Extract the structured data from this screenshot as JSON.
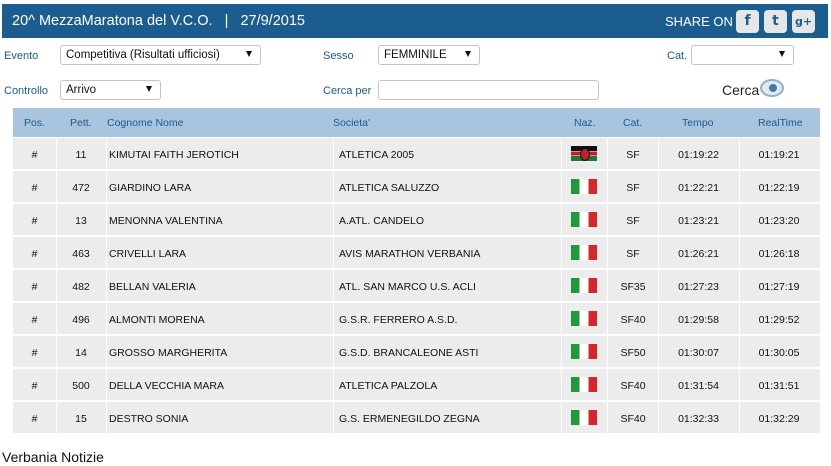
{
  "header": {
    "title": "20^ MezzaMaratona del V.C.O.   |   27/9/2015",
    "share_label": "SHARE ON",
    "social": [
      "f",
      "t",
      "g+"
    ]
  },
  "filters": {
    "evento_label": "Evento",
    "evento_value": "Competitiva (Risultati ufficiosi)",
    "sesso_label": "Sesso",
    "sesso_value": "FEMMINILE",
    "cat_label": "Cat.",
    "cat_value": "",
    "controllo_label": "Controllo",
    "controllo_value": "Arrivo",
    "cerca_per_label": "Cerca per",
    "cerca_per_value": "",
    "cerca_button": "Cerca"
  },
  "table": {
    "headers": {
      "pos": "Pos.",
      "pett": "Pett.",
      "name": "Cognome Nome",
      "club": "Societa'",
      "naz": "Naz.",
      "cat": "Cat.",
      "tempo": "Tempo",
      "realtime": "RealTime"
    },
    "rows": [
      {
        "pos": "#",
        "pett": "11",
        "name": "KIMUTAI FAITH JEROTICH",
        "club": "ATLETICA 2005",
        "flag": "kenya-flag",
        "cat": "SF",
        "tempo": "01:19:22",
        "realtime": "01:19:21"
      },
      {
        "pos": "#",
        "pett": "472",
        "name": "GIARDINO LARA",
        "club": "ATLETICA SALUZZO",
        "flag": "italy-flag",
        "cat": "SF",
        "tempo": "01:22:21",
        "realtime": "01:22:19"
      },
      {
        "pos": "#",
        "pett": "13",
        "name": "MENONNA VALENTINA",
        "club": "A.ATL. CANDELO",
        "flag": "italy-flag",
        "cat": "SF",
        "tempo": "01:23:21",
        "realtime": "01:23:20"
      },
      {
        "pos": "#",
        "pett": "463",
        "name": "CRIVELLI LARA",
        "club": "AVIS MARATHON VERBANIA",
        "flag": "italy-flag",
        "cat": "SF",
        "tempo": "01:26:21",
        "realtime": "01:26:18"
      },
      {
        "pos": "#",
        "pett": "482",
        "name": "BELLAN VALERIA",
        "club": "ATL. SAN MARCO U.S. ACLI",
        "flag": "italy-flag",
        "cat": "SF35",
        "tempo": "01:27:23",
        "realtime": "01:27:19"
      },
      {
        "pos": "#",
        "pett": "496",
        "name": "ALMONTI MORENA",
        "club": "G.S.R. FERRERO A.S.D.",
        "flag": "italy-flag",
        "cat": "SF40",
        "tempo": "01:29:58",
        "realtime": "01:29:52"
      },
      {
        "pos": "#",
        "pett": "14",
        "name": "GROSSO MARGHERITA",
        "club": "G.S.D. BRANCALEONE ASTI",
        "flag": "italy-flag",
        "cat": "SF50",
        "tempo": "01:30:07",
        "realtime": "01:30:05"
      },
      {
        "pos": "#",
        "pett": "500",
        "name": "DELLA VECCHIA MARA",
        "club": "ATLETICA PALZOLA",
        "flag": "italy-flag",
        "cat": "SF40",
        "tempo": "01:31:54",
        "realtime": "01:31:51"
      },
      {
        "pos": "#",
        "pett": "15",
        "name": "DESTRO SONIA",
        "club": "G.S. ERMENEGILDO ZEGNA",
        "flag": "italy-flag",
        "cat": "SF40",
        "tempo": "01:32:33",
        "realtime": "01:32:29"
      }
    ]
  },
  "footer": {
    "watermark": "Verbania Notizie"
  },
  "colors": {
    "header_bg": "#1c5d8f",
    "label_blue": "#1a5b92",
    "table_header_bg": "#a8c4de",
    "row_bg": "#ececec"
  }
}
